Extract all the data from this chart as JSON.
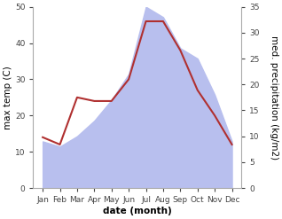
{
  "months": [
    "Jan",
    "Feb",
    "Mar",
    "Apr",
    "May",
    "Jun",
    "Jul",
    "Aug",
    "Sep",
    "Oct",
    "Nov",
    "Dec"
  ],
  "temperature": [
    14,
    12,
    25,
    24,
    24,
    30,
    46,
    46,
    38,
    27,
    20,
    12
  ],
  "precipitation": [
    9,
    8,
    10,
    13,
    17,
    22,
    35,
    33,
    27,
    25,
    18,
    9
  ],
  "temp_color": "#b03030",
  "precip_color_fill": "#b8bfee",
  "temp_ylim": [
    0,
    50
  ],
  "precip_ylim": [
    0,
    35
  ],
  "temp_yticks": [
    0,
    10,
    20,
    30,
    40,
    50
  ],
  "precip_yticks": [
    0,
    5,
    10,
    15,
    20,
    25,
    30,
    35
  ],
  "xlabel": "date (month)",
  "ylabel_left": "max temp (C)",
  "ylabel_right": "med. precipitation (kg/m2)",
  "temp_linewidth": 1.5,
  "bg_color": "#ffffff",
  "spine_color": "#aaaaaa",
  "tick_color": "#444444",
  "label_fontsize": 7.5,
  "tick_fontsize": 6.5
}
